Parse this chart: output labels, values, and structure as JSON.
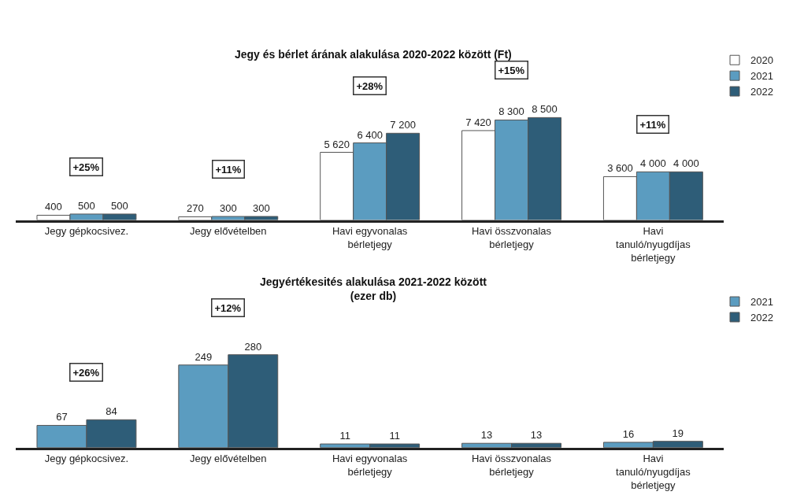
{
  "chart_data": [
    {
      "type": "bar",
      "title": "Jegy és bérlet árának alakulása 2020-2022 között (Ft)",
      "categories": [
        "Jegy gépkocsivez.",
        "Jegy elővételben",
        "Havi egyvonalas bérletjegy",
        "Havi összvonalas bérletjegy",
        "Havi tanuló/nyugdíjas bérletjegy"
      ],
      "series": [
        {
          "name": "2020",
          "color": "#ffffff",
          "values": [
            400,
            270,
            5620,
            7420,
            3600
          ],
          "value_labels": [
            "400",
            "270",
            "5 620",
            "7 420",
            "3 600"
          ]
        },
        {
          "name": "2021",
          "color": "#5b9cc0",
          "values": [
            500,
            300,
            6400,
            8300,
            4000
          ],
          "value_labels": [
            "500",
            "300",
            "6 400",
            "8 300",
            "4 000"
          ]
        },
        {
          "name": "2022",
          "color": "#2e5d78",
          "values": [
            500,
            300,
            7200,
            8500,
            4000
          ],
          "value_labels": [
            "500",
            "300",
            "7 200",
            "8 500",
            "4 000"
          ]
        }
      ],
      "annotations": [
        "+25%",
        "+11%",
        "+28%",
        "+15%",
        "+11%"
      ],
      "legend": "top right"
    },
    {
      "type": "bar",
      "title": "Jegyértékesités alakulása 2021-2022 között",
      "subtitle": "(ezer db)",
      "categories": [
        "Jegy gépkocsivez.",
        "Jegy elővételben",
        "Havi egyvonalas bérletjegy",
        "Havi összvonalas bérletjegy",
        "Havi tanuló/nyugdíjas bérletjegy"
      ],
      "series": [
        {
          "name": "2021",
          "color": "#5b9cc0",
          "values": [
            67,
            249,
            11,
            13,
            16
          ],
          "value_labels": [
            "67",
            "249",
            "11",
            "13",
            "16"
          ]
        },
        {
          "name": "2022",
          "color": "#2e5d78",
          "values": [
            84,
            280,
            11,
            13,
            19
          ],
          "value_labels": [
            "84",
            "280",
            "11",
            "13",
            "19"
          ]
        }
      ],
      "annotations": [
        "+26%",
        "+12%"
      ],
      "legend": "top right"
    }
  ]
}
